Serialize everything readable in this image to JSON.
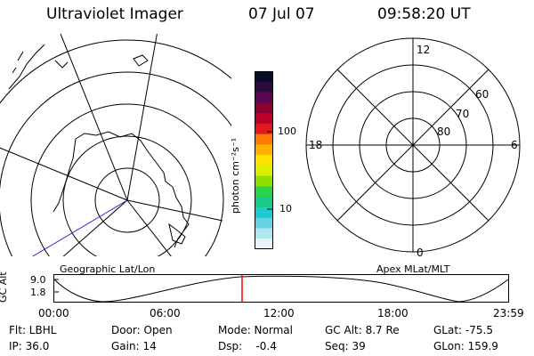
{
  "header": {
    "instrument": "Ultraviolet Imager",
    "date": "07 Jul 07",
    "time": "09:58:20 UT"
  },
  "colorbar": {
    "unit_label": "photon cm⁻²s⁻¹",
    "ticks": [
      "100",
      "10"
    ],
    "colors": [
      "#0b0b2a",
      "#2a0a3a",
      "#5a0650",
      "#8a0030",
      "#b8002a",
      "#e01a1a",
      "#ff7a00",
      "#ffb000",
      "#ffe000",
      "#d9ee00",
      "#8fe000",
      "#2ad24a",
      "#19c98a",
      "#1ecad0",
      "#63d3e3",
      "#b0e6ee",
      "#e6f4f6"
    ]
  },
  "left_panel": {
    "caption": "Geographic Lat/Lon"
  },
  "right_panel": {
    "caption": "Apex MLat/MLT",
    "mlt_labels": {
      "top": "12",
      "left": "18",
      "right": "6",
      "bottom": "0"
    },
    "mlat_labels": [
      "60",
      "70",
      "80"
    ]
  },
  "timeline": {
    "ylabel": "GC Alt",
    "yticks": [
      "9.0",
      "1.8"
    ],
    "xticks": [
      "00:00",
      "06:00",
      "12:00",
      "18:00",
      "23:59"
    ],
    "marker_color": "#ff0000"
  },
  "status": {
    "row1": [
      "Flt: LBHL",
      "Door: Open",
      "Mode: Normal",
      "GC Alt: 8.7 Re",
      "GLat: -75.5"
    ],
    "row2": [
      "IP: 36.0",
      "Gain: 14",
      "Dsp:    -0.4",
      "Seq: 39",
      "GLon: 159.9"
    ]
  }
}
